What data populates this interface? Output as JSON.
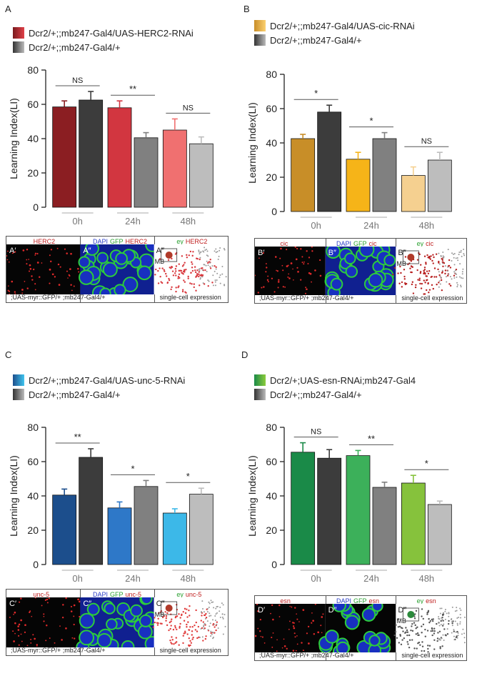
{
  "panels": [
    {
      "letter": "A",
      "legend": [
        "Dcr2/+;;mb247-Gal4/UAS-HERC2-RNAi",
        "Dcr2/+;;mb247-Gal4/+"
      ],
      "legend_colors": [
        "#c0303a",
        "#4a4a4a"
      ],
      "img_labels": {
        "left": "HERC2",
        "dapi": "DAPI",
        "gfp": "GFP",
        "mid_gene": "HERC2",
        "ey": "ey",
        "right_gene": "HERC2",
        "sub1": "A′",
        "sub2": "A″",
        "sub3": "A‴",
        "mb": "MB",
        "caption_left": ";UAS-myr::GFP/+ ;mb247-Gal4/+",
        "caption_right": "single-cell expression"
      },
      "scatter_color": "#d8383d"
    },
    {
      "letter": "B",
      "legend": [
        "Dcr2/+;;mb247-Gal4/UAS-cic-RNAi",
        "Dcr2/+;;mb247-Gal4/+"
      ],
      "legend_colors": [
        "#f0a020",
        "#4a4a4a"
      ],
      "img_labels": {
        "left": "cic",
        "dapi": "DAPI",
        "gfp": "GFP",
        "mid_gene": "cic",
        "ey": "ey",
        "right_gene": "cic",
        "sub1": "B′",
        "sub2": "B″",
        "sub3": "B‴",
        "mb": "MB",
        "caption_left": ";UAS-myr::GFP/+ ;mb247-Gal4/+",
        "caption_right": "single-cell expression"
      },
      "scatter_color": "#b82020"
    },
    {
      "letter": "C",
      "legend": [
        "Dcr2/+;;mb247-Gal4/UAS-unc-5-RNAi",
        "Dcr2/+;;mb247-Gal4/+"
      ],
      "legend_colors": [
        "#2a8fd8",
        "#4a4a4a"
      ],
      "img_labels": {
        "left": "unc-5",
        "dapi": "DAPI",
        "gfp": "GFP",
        "mid_gene": "unc-5",
        "ey": "ey",
        "right_gene": "unc-5",
        "sub1": "C′",
        "sub2": "C″",
        "sub3": "C‴",
        "mb": "MB",
        "caption_left": ";UAS-myr::GFP/+ ;mb247-Gal4/+",
        "caption_right": "single-cell expression"
      },
      "scatter_color": "#e03a3a"
    },
    {
      "letter": "D",
      "legend": [
        "Dcr2/+;UAS-esn-RNAi;mb247-Gal4",
        "Dcr2/+;;mb247-Gal4/+"
      ],
      "legend_colors": [
        "#2ea84a",
        "#4a4a4a"
      ],
      "img_labels": {
        "left": "esn",
        "dapi": "DAPI",
        "gfp": "GFP",
        "mid_gene": "esn",
        "ey": "ey",
        "right_gene": "esn",
        "sub1": "D′",
        "sub2": "D″",
        "sub3": "D‴",
        "mb": "MB",
        "caption_left": ";UAS-myr::GFP/+ ;mb247-Gal4/+",
        "caption_right": "single-cell expression"
      },
      "scatter_color": "#555555"
    }
  ],
  "chart_data": [
    {
      "type": "bar",
      "panel": "A",
      "ylabel": "Learning Index(LI)",
      "ylim": [
        0,
        80
      ],
      "yticks": [
        0,
        20,
        40,
        60,
        80
      ],
      "categories": [
        "0h",
        "24h",
        "48h"
      ],
      "series": [
        {
          "name": "Dcr2/+;;mb247-Gal4/UAS-HERC2-RNAi",
          "values": [
            58.5,
            58,
            45
          ],
          "errors": [
            3.5,
            4,
            6.5
          ],
          "colors": [
            "#8b1e22",
            "#d23640",
            "#f07070"
          ]
        },
        {
          "name": "Dcr2/+;;mb247-Gal4/+",
          "values": [
            62.5,
            40.5,
            37
          ],
          "errors": [
            5,
            3,
            4
          ],
          "colors": [
            "#3c3c3c",
            "#808080",
            "#bdbdbd"
          ]
        }
      ],
      "significance": [
        "NS",
        "**",
        "NS"
      ]
    },
    {
      "type": "bar",
      "panel": "B",
      "ylabel": "Learning Index(LI)",
      "ylim": [
        0,
        80
      ],
      "yticks": [
        0,
        20,
        40,
        60,
        80
      ],
      "categories": [
        "0h",
        "24h",
        "48h"
      ],
      "series": [
        {
          "name": "Dcr2/+;;mb247-Gal4/UAS-cic-RNAi",
          "values": [
            42.5,
            30.5,
            21
          ],
          "errors": [
            2.5,
            4,
            5
          ],
          "colors": [
            "#c88e28",
            "#f6b418",
            "#f5d090"
          ]
        },
        {
          "name": "Dcr2/+;;mb247-Gal4/+",
          "values": [
            58,
            42.5,
            30
          ],
          "errors": [
            4,
            3.5,
            4.5
          ],
          "colors": [
            "#3c3c3c",
            "#808080",
            "#bdbdbd"
          ]
        }
      ],
      "significance": [
        "*",
        "*",
        "NS"
      ]
    },
    {
      "type": "bar",
      "panel": "C",
      "ylabel": "Learning Index(LI)",
      "ylim": [
        0,
        80
      ],
      "yticks": [
        0,
        20,
        40,
        60,
        80
      ],
      "categories": [
        "0h",
        "24h",
        "48h"
      ],
      "series": [
        {
          "name": "Dcr2/+;;mb247-Gal4/UAS-unc-5-RNAi",
          "values": [
            40.5,
            33,
            30
          ],
          "errors": [
            3.5,
            3.5,
            2.5
          ],
          "colors": [
            "#1c4e8c",
            "#2e78c8",
            "#3cb8e8"
          ]
        },
        {
          "name": "Dcr2/+;;mb247-Gal4/+",
          "values": [
            62.5,
            45.5,
            41
          ],
          "errors": [
            5,
            3.5,
            3.5
          ],
          "colors": [
            "#3c3c3c",
            "#808080",
            "#bdbdbd"
          ]
        }
      ],
      "significance": [
        "**",
        "*",
        "*"
      ]
    },
    {
      "type": "bar",
      "panel": "D",
      "ylabel": "Learning Index(LI)",
      "ylim": [
        0,
        80
      ],
      "yticks": [
        0,
        20,
        40,
        60,
        80
      ],
      "categories": [
        "0h",
        "24h",
        "48h"
      ],
      "series": [
        {
          "name": "Dcr2/+;UAS-esn-RNAi;mb247-Gal4",
          "values": [
            65.5,
            63.5,
            47.5
          ],
          "errors": [
            5.5,
            3,
            4.5
          ],
          "colors": [
            "#1a8a48",
            "#3cb05a",
            "#86c23c"
          ]
        },
        {
          "name": "Dcr2/+;;mb247-Gal4/+",
          "values": [
            62,
            45,
            35
          ],
          "errors": [
            5,
            3,
            2
          ],
          "colors": [
            "#3c3c3c",
            "#808080",
            "#bdbdbd"
          ]
        }
      ],
      "significance": [
        "NS",
        "**",
        "*"
      ]
    }
  ]
}
